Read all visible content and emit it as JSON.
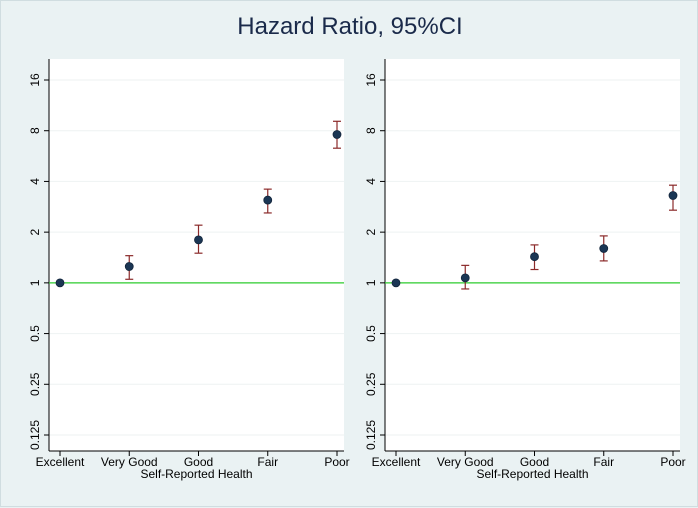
{
  "title": "Hazard Ratio, 95%CI",
  "chart_data": [
    {
      "type": "scatter",
      "panel": "left",
      "categories": [
        "Excellent",
        "Very Good",
        "Good",
        "Fair",
        "Poor"
      ],
      "estimates": [
        1.0,
        1.25,
        1.8,
        3.1,
        7.6
      ],
      "ci_low": [
        1.0,
        1.05,
        1.5,
        2.6,
        6.3
      ],
      "ci_high": [
        1.0,
        1.45,
        2.2,
        3.6,
        9.1
      ],
      "xlabel": "Self-Reported Health",
      "ylabel": "",
      "yscale": "log",
      "ylim": [
        0.125,
        16
      ],
      "yticks": [
        0.125,
        0.25,
        0.5,
        1,
        2,
        4,
        8,
        16
      ],
      "ytick_labels": [
        "0.125",
        "0.25",
        "0.5",
        "1",
        "2",
        "4",
        "8",
        "16"
      ],
      "reference_line": 1,
      "grid": true
    },
    {
      "type": "scatter",
      "panel": "right",
      "categories": [
        "Excellent",
        "Very Good",
        "Good",
        "Fair",
        "Poor"
      ],
      "estimates": [
        1.0,
        1.07,
        1.43,
        1.6,
        3.3
      ],
      "ci_low": [
        1.0,
        0.92,
        1.2,
        1.35,
        2.7
      ],
      "ci_high": [
        1.0,
        1.27,
        1.68,
        1.9,
        3.8
      ],
      "xlabel": "Self-Reported Health",
      "ylabel": "",
      "yscale": "log",
      "ylim": [
        0.125,
        16
      ],
      "yticks": [
        0.125,
        0.25,
        0.5,
        1,
        2,
        4,
        8,
        16
      ],
      "ytick_labels": [
        "0.125",
        "0.25",
        "0.5",
        "1",
        "2",
        "4",
        "8",
        "16"
      ],
      "reference_line": 1,
      "grid": true
    }
  ],
  "colors": {
    "background": "#eaf2f3",
    "panel": "#ffffff",
    "point": "#1b3654",
    "ci": "#8b2a2a",
    "reference": "#2ecc2e"
  }
}
